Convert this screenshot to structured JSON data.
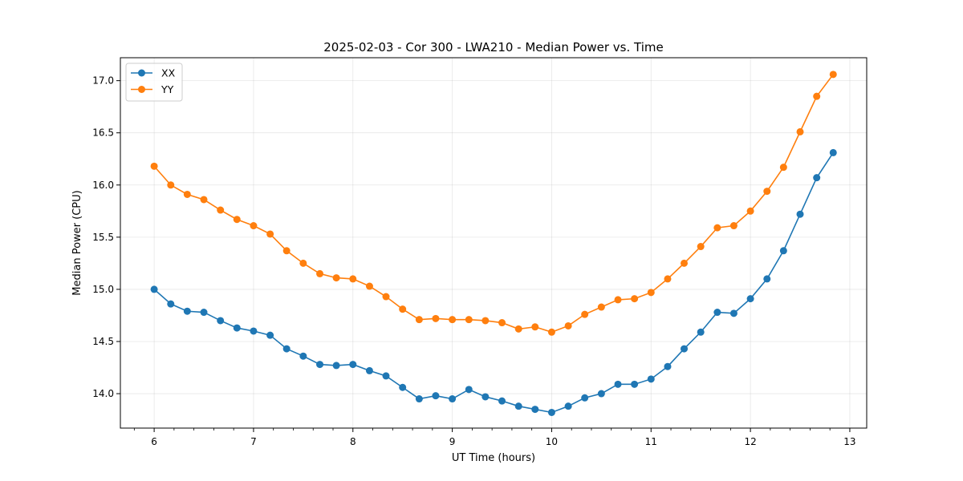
{
  "chart_data": {
    "type": "line",
    "title": "2025-02-03 - Cor 300 - LWA210 - Median Power vs. Time",
    "xlabel": "UT Time (hours)",
    "ylabel": "Median Power (CPU)",
    "xlim": [
      5.66,
      13.17
    ],
    "ylim": [
      13.67,
      17.22
    ],
    "xticks": [
      6,
      7,
      8,
      9,
      10,
      11,
      12,
      13
    ],
    "yticks": [
      14.0,
      14.5,
      15.0,
      15.5,
      16.0,
      16.5,
      17.0
    ],
    "grid": true,
    "legend_location": "top-left",
    "x": [
      6.0,
      6.167,
      6.333,
      6.5,
      6.667,
      6.833,
      7.0,
      7.167,
      7.333,
      7.5,
      7.667,
      7.833,
      8.0,
      8.167,
      8.333,
      8.5,
      8.667,
      8.833,
      9.0,
      9.167,
      9.333,
      9.5,
      9.667,
      9.833,
      10.0,
      10.167,
      10.333,
      10.5,
      10.667,
      10.833,
      11.0,
      11.167,
      11.333,
      11.5,
      11.667,
      11.833,
      12.0,
      12.167,
      12.333,
      12.5,
      12.667,
      12.833
    ],
    "series": [
      {
        "name": "XX",
        "color": "#1f77b4",
        "values": [
          15.0,
          14.86,
          14.79,
          14.78,
          14.7,
          14.63,
          14.6,
          14.56,
          14.43,
          14.36,
          14.28,
          14.27,
          14.28,
          14.22,
          14.17,
          14.06,
          13.95,
          13.98,
          13.95,
          14.04,
          13.97,
          13.93,
          13.88,
          13.85,
          13.82,
          13.88,
          13.96,
          14.0,
          14.09,
          14.09,
          14.14,
          14.26,
          14.43,
          14.59,
          14.78,
          14.77,
          14.91,
          15.1,
          15.37,
          15.72,
          16.07,
          16.31
        ]
      },
      {
        "name": "YY",
        "color": "#ff7f0e",
        "values": [
          16.18,
          16.0,
          15.91,
          15.86,
          15.76,
          15.67,
          15.61,
          15.53,
          15.37,
          15.25,
          15.15,
          15.11,
          15.1,
          15.03,
          14.93,
          14.81,
          14.71,
          14.72,
          14.71,
          14.71,
          14.7,
          14.68,
          14.62,
          14.64,
          14.59,
          14.65,
          14.76,
          14.83,
          14.9,
          14.91,
          14.97,
          15.1,
          15.25,
          15.41,
          15.59,
          15.61,
          15.75,
          15.94,
          16.17,
          16.51,
          16.85,
          17.06
        ]
      }
    ]
  }
}
